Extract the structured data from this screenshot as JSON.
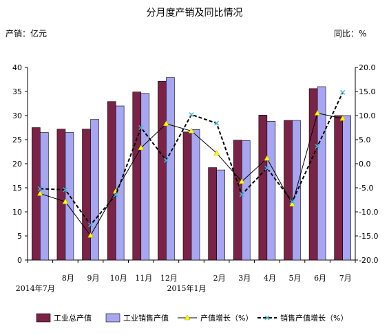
{
  "chart_data": {
    "type": "bar",
    "title": "分月度产销及同比情况",
    "left_unit": "产销：亿元",
    "right_unit": "同比：%",
    "categories": [
      "2014年7月",
      "8月",
      "9月",
      "10月",
      "11月",
      "12月",
      "2015年1月",
      "2月",
      "3月",
      "4月",
      "5月",
      "6月",
      "7月"
    ],
    "x_labels": [
      {
        "text": "2014年7月",
        "row": 2
      },
      {
        "text": "8月",
        "row": 1
      },
      {
        "text": "9月",
        "row": 1
      },
      {
        "text": "10月",
        "row": 1
      },
      {
        "text": "11月",
        "row": 1
      },
      {
        "text": "12月",
        "row": 1
      },
      {
        "text": "2015年1月",
        "row": 2
      },
      {
        "text": "2月",
        "row": 1
      },
      {
        "text": "3月",
        "row": 1
      },
      {
        "text": "4月",
        "row": 1
      },
      {
        "text": "5月",
        "row": 1
      },
      {
        "text": "6月",
        "row": 1
      },
      {
        "text": "7月",
        "row": 1
      }
    ],
    "series": [
      {
        "name": "工业总产值",
        "kind": "bar",
        "axis": "left",
        "color": "#7a2346",
        "values": [
          27.5,
          27.2,
          27.2,
          32.9,
          34.9,
          37.1,
          26.6,
          19.2,
          24.9,
          30.1,
          29.0,
          35.6,
          30.0
        ]
      },
      {
        "name": "工业销售产值",
        "kind": "bar",
        "axis": "left",
        "color": "#a6a6f2",
        "values": [
          26.5,
          26.5,
          29.2,
          32.0,
          34.6,
          37.9,
          27.1,
          18.7,
          24.8,
          28.8,
          29.0,
          36.0,
          30.0
        ]
      },
      {
        "name": "产值增长（%）",
        "kind": "line",
        "axis": "right",
        "color": "#000000",
        "marker_color": "#ffff00",
        "values": [
          -6.2,
          -7.9,
          -14.9,
          -5.7,
          3.3,
          8.3,
          6.8,
          2.2,
          -3.7,
          1.1,
          -8.4,
          10.5,
          9.4
        ]
      },
      {
        "name": "销售产值增长（%）",
        "kind": "line",
        "axis": "right",
        "color": "#000000",
        "marker_color": "#40b8d8",
        "dashed": true,
        "values": [
          -5.2,
          -5.4,
          -12.7,
          -6.5,
          7.5,
          0.7,
          10.2,
          8.4,
          -6.4,
          -0.9,
          -7.9,
          3.6,
          14.8
        ]
      }
    ],
    "left_axis": {
      "min": 0,
      "max": 40,
      "step": 5,
      "labels": [
        "0",
        "5",
        "10",
        "15",
        "20",
        "25",
        "30",
        "35",
        "40"
      ]
    },
    "right_axis": {
      "min": -20,
      "max": 20,
      "step": 5,
      "labels": [
        "-20.0",
        "-15.0",
        "-10.0",
        "-5.0",
        "0.0",
        "5.0",
        "10.0",
        "15.0",
        "20.0"
      ]
    },
    "legend_position": "bottom",
    "grid": false
  }
}
